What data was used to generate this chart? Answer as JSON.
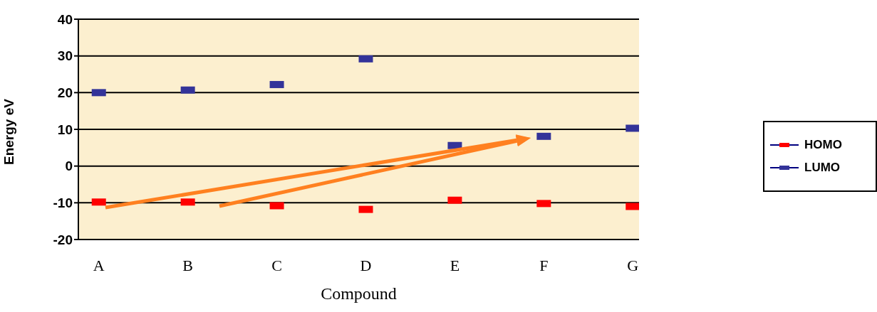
{
  "chart_data": {
    "type": "scatter",
    "xlabel": "Compound",
    "ylabel": "Energy eV",
    "categories": [
      "A",
      "B",
      "C",
      "D",
      "E",
      "F",
      "G"
    ],
    "series": [
      {
        "name": "HOMO",
        "color": "#ff0000",
        "values": [
          -9.8,
          -9.8,
          -10.8,
          -11.8,
          -9.3,
          -10.2,
          -11.0
        ]
      },
      {
        "name": "LUMO",
        "color": "#333399",
        "values": [
          20,
          20.7,
          22.2,
          29.2,
          5.6,
          8.1,
          10.3
        ]
      }
    ],
    "ylim": [
      -20,
      40
    ],
    "yticks": [
      -20,
      -10,
      0,
      10,
      20,
      30,
      40
    ],
    "grid": "y",
    "legend": "right",
    "marker": "square"
  }
}
